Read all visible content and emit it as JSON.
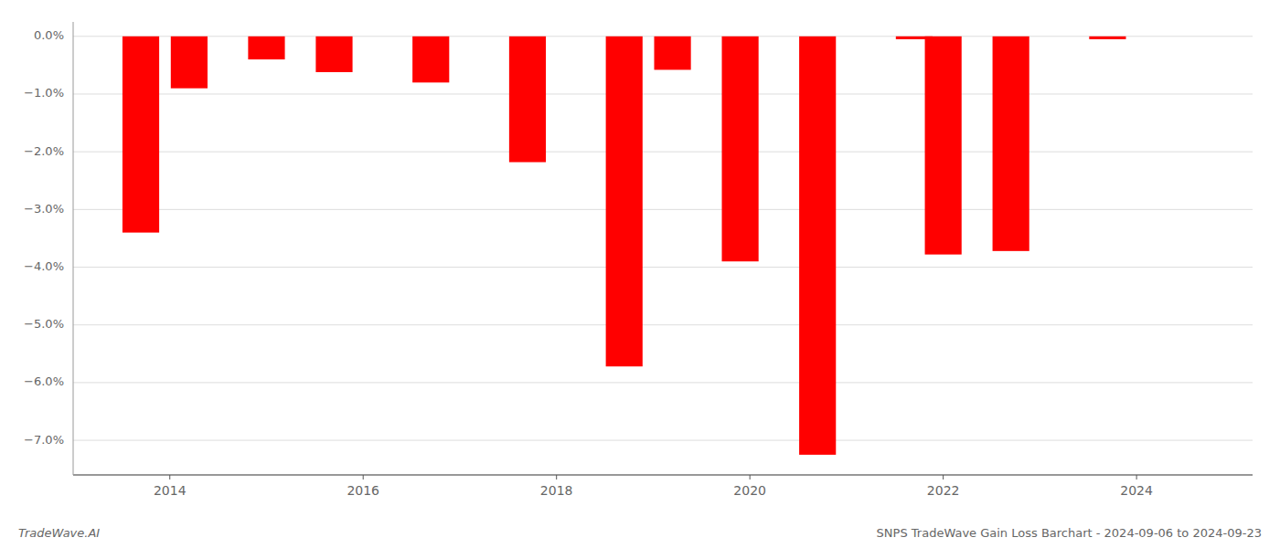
{
  "chart_data": {
    "type": "bar",
    "x": [
      2013.7,
      2014.2,
      2015.0,
      2015.7,
      2016.7,
      2017.7,
      2018.7,
      2019.2,
      2019.9,
      2020.7,
      2021.7,
      2022.0,
      2022.7,
      2023.7
    ],
    "values": [
      -3.4,
      -0.9,
      -0.4,
      -0.62,
      -0.8,
      -2.18,
      -5.72,
      -0.58,
      -3.9,
      -7.25,
      -0.05,
      -3.78,
      -3.72,
      -0.05
    ],
    "color": "#ff0000",
    "xlim": [
      2013.0,
      2025.2
    ],
    "xticks": [
      2014,
      2016,
      2018,
      2020,
      2022,
      2024
    ],
    "ylim": [
      -7.6,
      0.25
    ],
    "yticks": [
      {
        "value": 0.0,
        "label": "0.0%"
      },
      {
        "value": -1.0,
        "label": "−1.0%"
      },
      {
        "value": -2.0,
        "label": "−2.0%"
      },
      {
        "value": -3.0,
        "label": "−3.0%"
      },
      {
        "value": -4.0,
        "label": "−4.0%"
      },
      {
        "value": -5.0,
        "label": "−5.0%"
      },
      {
        "value": -6.0,
        "label": "−6.0%"
      },
      {
        "value": -7.0,
        "label": "−7.0%"
      }
    ],
    "grid": true,
    "annotations": [
      "TradeWave.AI",
      "SNPS TradeWave Gain Loss Barchart - 2024-09-06 to 2024-09-23"
    ]
  }
}
